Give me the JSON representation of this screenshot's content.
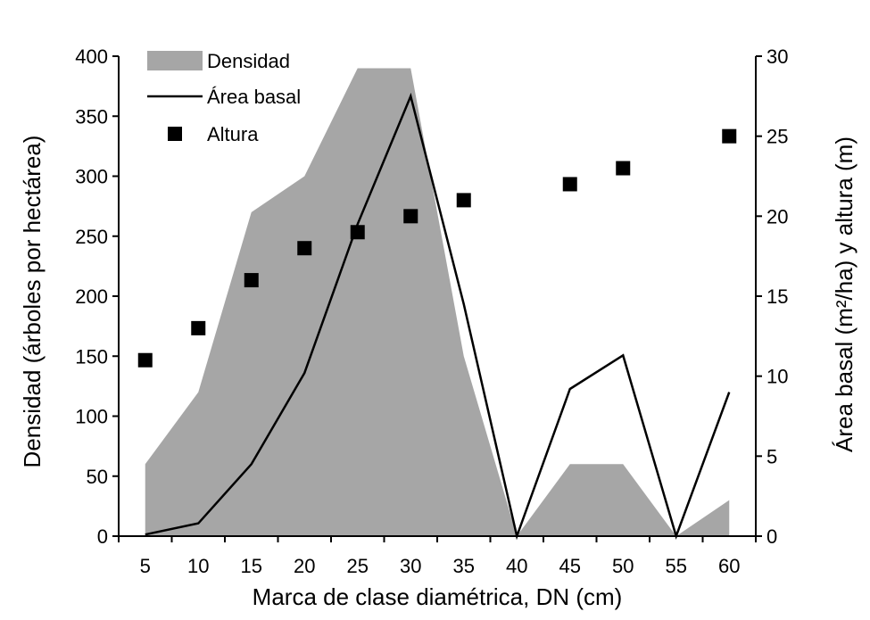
{
  "chart_data": {
    "type": "area",
    "xlabel": "Marca de clase diamétrica, DN (cm)",
    "ylabel_left": "Densidad  (árboles por hectárea)",
    "ylabel_right": "Área basal (m²/ha) y altura (m)",
    "x": [
      5,
      10,
      15,
      20,
      25,
      30,
      35,
      40,
      45,
      50,
      55,
      60
    ],
    "x_tick_labels": [
      "5",
      "10",
      "15",
      "20",
      "25",
      "30",
      "35",
      "40",
      "45",
      "50",
      "55",
      "60"
    ],
    "ylim_left": [
      0,
      400
    ],
    "y_ticks_left": [
      "0",
      "50",
      "100",
      "150",
      "200",
      "250",
      "300",
      "350",
      "400"
    ],
    "ylim_right": [
      0,
      30
    ],
    "y_ticks_right": [
      "0",
      "5",
      "10",
      "15",
      "20",
      "25",
      "30"
    ],
    "legend_position": "top-left",
    "series": [
      {
        "name": "Densidad",
        "type": "area",
        "axis": "left",
        "color": "#a6a6a6",
        "x": [
          5,
          10,
          15,
          20,
          25,
          30,
          35,
          40,
          45,
          50,
          55,
          60
        ],
        "values": [
          60,
          120,
          270,
          300,
          390,
          390,
          150,
          0,
          60,
          60,
          0,
          30
        ]
      },
      {
        "name": "Área basal",
        "type": "line",
        "axis": "right",
        "color": "#000000",
        "x": [
          5,
          10,
          15,
          20,
          25,
          30,
          35,
          40,
          45,
          50,
          55,
          60
        ],
        "values": [
          0.1,
          0.8,
          4.5,
          10.2,
          19.5,
          27.5,
          14.5,
          0,
          9.2,
          11.3,
          0,
          9.0
        ]
      },
      {
        "name": "Altura",
        "type": "scatter",
        "axis": "right",
        "color": "#000000",
        "x": [
          5,
          10,
          15,
          20,
          25,
          30,
          35,
          45,
          50,
          60
        ],
        "values": [
          11,
          13,
          16,
          18,
          19,
          20,
          21,
          22,
          23,
          25
        ]
      }
    ]
  }
}
